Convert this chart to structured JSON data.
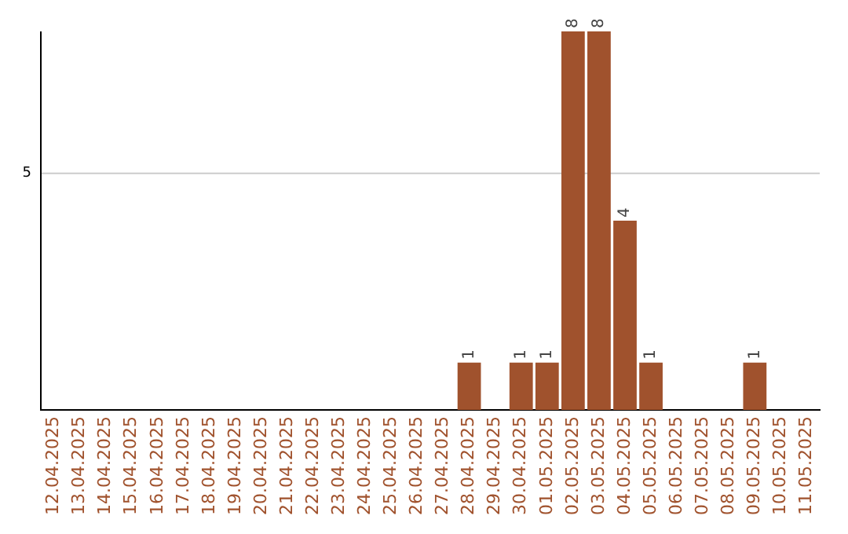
{
  "chart_data": {
    "type": "bar",
    "ylim": [
      0,
      8
    ],
    "categories": [
      "12.04.2025",
      "13.04.2025",
      "14.04.2025",
      "15.04.2025",
      "16.04.2025",
      "17.04.2025",
      "18.04.2025",
      "19.04.2025",
      "20.04.2025",
      "21.04.2025",
      "22.04.2025",
      "23.04.2025",
      "24.04.2025",
      "25.04.2025",
      "26.04.2025",
      "27.04.2025",
      "28.04.2025",
      "29.04.2025",
      "30.04.2025",
      "01.05.2025",
      "02.05.2025",
      "03.05.2025",
      "04.05.2025",
      "05.05.2025",
      "06.05.2025",
      "07.05.2025",
      "08.05.2025",
      "09.05.2025",
      "10.05.2025",
      "11.05.2025"
    ],
    "values": [
      null,
      null,
      null,
      null,
      null,
      null,
      null,
      null,
      null,
      null,
      null,
      null,
      null,
      null,
      null,
      null,
      1,
      null,
      1,
      1,
      8,
      8,
      4,
      1,
      null,
      null,
      null,
      1,
      null,
      null
    ],
    "data_labels": true,
    "color": "#a0522d",
    "ref_lines": [
      {
        "axis": "y",
        "value": 5,
        "label": "5",
        "color": "#cccccc"
      }
    ],
    "legend": false
  }
}
